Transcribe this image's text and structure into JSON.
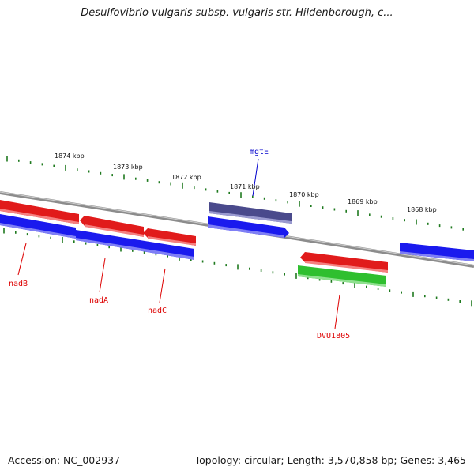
{
  "title": "Desulfovibrio vulgaris subsp. vulgaris str. Hildenborough, c...",
  "footer": {
    "accession": "Accession: NC_002937",
    "summary": "Topology: circular; Length: 3,570,858 bp; Genes: 3,465"
  },
  "colors": {
    "backbone": "#8c8c8c",
    "tick": "#1f7a1f",
    "forward_gene": "#e11b1b",
    "reverse_gene": "#1a1aee",
    "rna_gene": "#4a4a8c",
    "other_gene": "#2fbf2f",
    "label_red": "#dd0000",
    "label_blue": "#0000cc"
  },
  "scale_labels": [
    "1874 kbp",
    "1873 kbp",
    "1872 kbp",
    "1871 kbp",
    "1870 kbp",
    "1869 kbp",
    "1868 kbp"
  ],
  "gene_labels": [
    {
      "name": "mgtE",
      "color": "label_blue"
    },
    {
      "name": "nadB",
      "color": "label_red"
    },
    {
      "name": "nadA",
      "color": "label_red"
    },
    {
      "name": "nadC",
      "color": "label_red"
    },
    {
      "name": "DVU1805",
      "color": "label_red"
    }
  ]
}
